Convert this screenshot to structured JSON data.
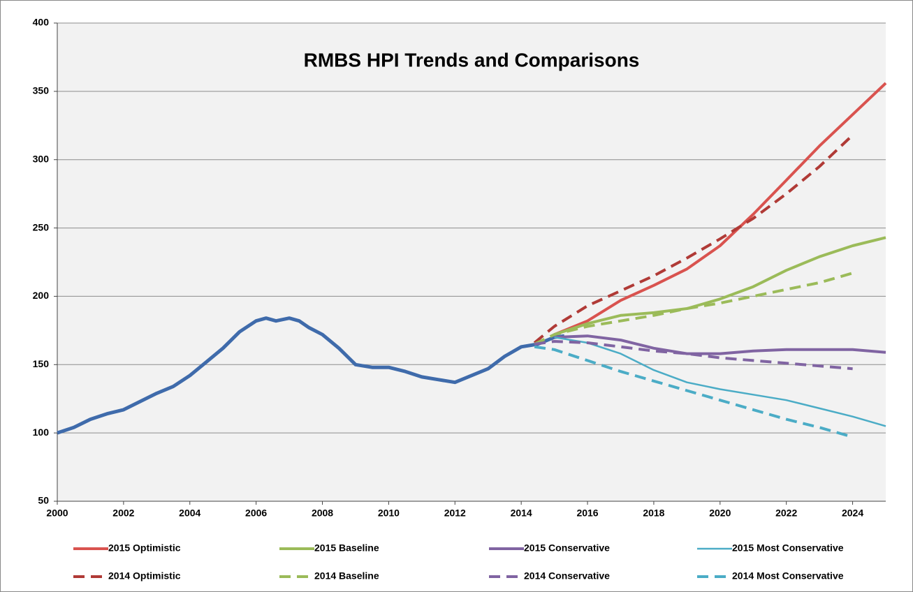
{
  "chart_data": {
    "type": "line",
    "title": "RMBS HPI Trends and Comparisons",
    "xlim": [
      2000,
      2025
    ],
    "xticks": [
      2000,
      2002,
      2004,
      2006,
      2008,
      2010,
      2012,
      2014,
      2016,
      2018,
      2020,
      2022,
      2024
    ],
    "ylim": [
      50,
      400
    ],
    "yticks": [
      50,
      100,
      150,
      200,
      250,
      300,
      350,
      400
    ],
    "grid": true,
    "legend": "bottom",
    "series": [
      {
        "color": "#3f6bab",
        "width": 5,
        "dashed": false,
        "x": [
          2000,
          2000.5,
          2001,
          2001.5,
          2002,
          2002.5,
          2003,
          2003.5,
          2004,
          2004.5,
          2005,
          2005.5,
          2006,
          2006.3,
          2006.6,
          2007,
          2007.3,
          2007.6,
          2008,
          2008.5,
          2009,
          2009.5,
          2010,
          2010.5,
          2011,
          2011.5,
          2012,
          2012.5,
          2013,
          2013.5,
          2014,
          2014.5,
          2015,
          2015.3
        ],
        "values": [
          100,
          104,
          110,
          114,
          117,
          123,
          129,
          134,
          142,
          152,
          162,
          174,
          182,
          184,
          182,
          184,
          182,
          177,
          172,
          162,
          150,
          148,
          148,
          145,
          141,
          139,
          137,
          142,
          147,
          156,
          163,
          165,
          170,
          171
        ]
      },
      {
        "name": "2015 Optimistic",
        "color": "#d9534f",
        "width": 4,
        "dashed": false,
        "x": [
          2015,
          2016,
          2017,
          2018,
          2019,
          2020,
          2021,
          2022,
          2023,
          2024,
          2025
        ],
        "values": [
          172,
          182,
          197,
          208,
          220,
          237,
          260,
          285,
          310,
          333,
          356
        ]
      },
      {
        "name": "2015 Baseline",
        "color": "#9bbb59",
        "width": 4,
        "dashed": false,
        "x": [
          2015,
          2016,
          2017,
          2018,
          2019,
          2020,
          2021,
          2022,
          2023,
          2024,
          2025
        ],
        "values": [
          172,
          180,
          186,
          188,
          191,
          198,
          207,
          219,
          229,
          237,
          243
        ]
      },
      {
        "name": "2015 Conservative",
        "color": "#8064a2",
        "width": 4,
        "dashed": false,
        "x": [
          2015,
          2016,
          2017,
          2018,
          2019,
          2020,
          2021,
          2022,
          2023,
          2024,
          2025
        ],
        "values": [
          170,
          171,
          168,
          162,
          158,
          158,
          160,
          161,
          161,
          161,
          159
        ]
      },
      {
        "name": "2015 Most Conservative",
        "color": "#4bacc6",
        "width": 2.5,
        "dashed": false,
        "x": [
          2015,
          2016,
          2017,
          2018,
          2019,
          2020,
          2021,
          2022,
          2023,
          2024,
          2025
        ],
        "values": [
          170,
          166,
          158,
          146,
          137,
          132,
          128,
          124,
          118,
          112,
          105
        ]
      },
      {
        "name": "2014 Optimistic",
        "color": "#b03a36",
        "width": 4,
        "dashed": true,
        "x": [
          2014.4,
          2015,
          2016,
          2017,
          2018,
          2019,
          2020,
          2021,
          2022,
          2023,
          2024
        ],
        "values": [
          166,
          178,
          193,
          204,
          215,
          228,
          242,
          257,
          275,
          295,
          318
        ]
      },
      {
        "name": "2014 Baseline",
        "color": "#9bbb59",
        "width": 4,
        "dashed": true,
        "x": [
          2014.4,
          2015,
          2016,
          2017,
          2018,
          2019,
          2020,
          2021,
          2022,
          2023,
          2024
        ],
        "values": [
          165,
          172,
          178,
          182,
          186,
          191,
          195,
          200,
          205,
          210,
          217
        ]
      },
      {
        "name": "2014 Conservative",
        "color": "#8064a2",
        "width": 4,
        "dashed": true,
        "x": [
          2014.4,
          2015,
          2016,
          2017,
          2018,
          2019,
          2020,
          2021,
          2022,
          2023,
          2024
        ],
        "values": [
          165,
          167,
          166,
          163,
          160,
          158,
          155,
          153,
          151,
          149,
          147
        ]
      },
      {
        "name": "2014 Most Conservative",
        "color": "#4bacc6",
        "width": 4,
        "dashed": true,
        "x": [
          2014.4,
          2015,
          2016,
          2017,
          2018,
          2019,
          2020,
          2021,
          2022,
          2023,
          2024
        ],
        "values": [
          163,
          161,
          153,
          145,
          138,
          131,
          124,
          117,
          110,
          104,
          97
        ]
      }
    ]
  }
}
